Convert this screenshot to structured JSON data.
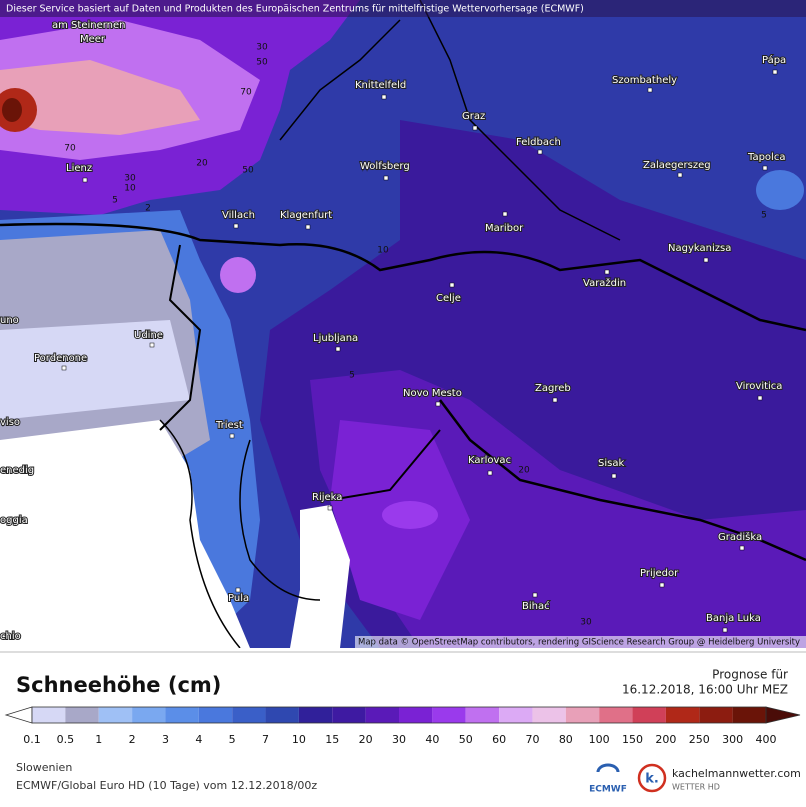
{
  "header": {
    "notice": "Dieser Service basiert auf Daten und Produkten des Europäischen Zentrums für mittelfristige Wettervorhersage (ECMWF)"
  },
  "map": {
    "cities": [
      "am Steinernen",
      "Meer",
      "Knittelfeld",
      "Graz",
      "Szombathely",
      "Pápa",
      "Feldbach",
      "Lienz",
      "Wolfsberg",
      "Zalaegerszeg",
      "Tapolca",
      "Villach",
      "Klagenfurt",
      "Maribor",
      "Nagykanizsa",
      "Varaždin",
      "Celje",
      "uno",
      "Udine",
      "Pordenone",
      "Ljubljana",
      "Novo Mesto",
      "Zagreb",
      "Virovitica",
      "viso",
      "Triest",
      "enedig",
      "Karlovac",
      "Sisak",
      "Rijeka",
      "oggia",
      "Gradiška",
      "Prijedor",
      "Pula",
      "Bihać",
      "Banja Luka",
      "chio"
    ],
    "contour_labels": [
      "30",
      "50",
      "70",
      "70",
      "20",
      "50",
      "30",
      "10",
      "5",
      "2",
      "5",
      "10",
      "5",
      "20",
      "30"
    ],
    "attribution": "Map data © OpenStreetMap contributors, rendering GIScience Research Group @ Heidelberg University"
  },
  "legend": {
    "title": "Schneehöhe (cm)",
    "forecast_label": "Prognose für",
    "forecast_time": "16.12.2018, 16:00 Uhr MEZ",
    "ticks": [
      0.1,
      0.5,
      1,
      2,
      3,
      4,
      5,
      7,
      10,
      15,
      20,
      30,
      40,
      50,
      60,
      70,
      80,
      100,
      150,
      200,
      250,
      300,
      400
    ],
    "colors": [
      "#d6d8f5",
      "#a8a8c8",
      "#9fc0f5",
      "#7aa8f0",
      "#5b8ee8",
      "#4a78dd",
      "#3a5fc8",
      "#2f48b0",
      "#30209a",
      "#3e1aa2",
      "#5a1ab8",
      "#7a22d4",
      "#9a3aec",
      "#c070f0",
      "#dcaaf5",
      "#ecc2e8",
      "#e8a0b8",
      "#e07088",
      "#d04058",
      "#b02818",
      "#8c1c10",
      "#6a1408"
    ],
    "below_color": "#ffffff",
    "above_color": "#4a0c08"
  },
  "footer": {
    "region": "Slowenien",
    "model": "ECMWF/Global Euro HD (10 Tage) vom 12.12.2018/00z",
    "logo_left": "ECMWF",
    "logo_site": "kachelmannwetter.com",
    "logo_sub": "WETTER HD",
    "logo_k": "k."
  }
}
